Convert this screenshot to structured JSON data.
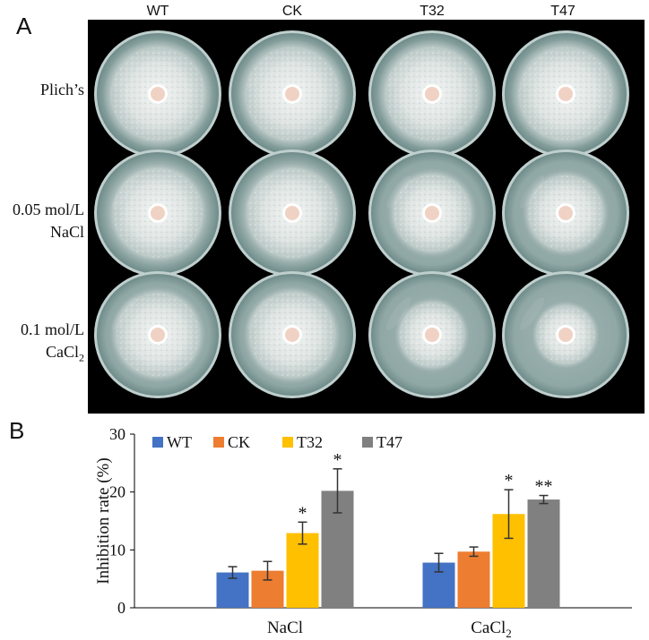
{
  "panel_a": {
    "letter": "A",
    "columns": [
      "WT",
      "CK",
      "T32",
      "T47"
    ],
    "rows": [
      {
        "line1": "Plich’s",
        "line2": ""
      },
      {
        "line1": "0.05 mol/L",
        "line2": "NaCl"
      },
      {
        "line1": "0.1 mol/L",
        "line2": "CaCl",
        "line2_sub": "2"
      }
    ],
    "colors": {
      "background": "#000000",
      "agar": "#8fa7a5",
      "mycelium": "#e8ecea",
      "inoculum": "#f0d2c4"
    },
    "colony_extent": [
      [
        0.9,
        0.9,
        0.9,
        0.9
      ],
      [
        0.86,
        0.86,
        0.74,
        0.72
      ],
      [
        0.8,
        0.82,
        0.62,
        0.56
      ]
    ]
  },
  "panel_b": {
    "letter": "B",
    "chart_data": {
      "type": "bar",
      "categories": [
        "NaCl",
        "CaCl2"
      ],
      "category_labels": [
        {
          "main": "NaCl",
          "sub": ""
        },
        {
          "main": "CaCl",
          "sub": "2"
        }
      ],
      "ylabel": "Inhibition rate (%)",
      "xlabel": "",
      "ylim": [
        0,
        30
      ],
      "yticks": [
        "0",
        "10",
        "20",
        "30"
      ],
      "legend_position": "top",
      "grid": false,
      "series": [
        {
          "name": "WT",
          "color": "#4472c4",
          "values": [
            6.1,
            7.8
          ],
          "errors": [
            1.0,
            1.6
          ],
          "marks": [
            "",
            ""
          ]
        },
        {
          "name": "CK",
          "color": "#ed7d31",
          "values": [
            6.4,
            9.7
          ],
          "errors": [
            1.6,
            0.8
          ],
          "marks": [
            "",
            ""
          ]
        },
        {
          "name": "T32",
          "color": "#ffc000",
          "values": [
            12.9,
            16.2
          ],
          "errors": [
            1.9,
            4.2
          ],
          "marks": [
            "*",
            "*"
          ]
        },
        {
          "name": "T47",
          "color": "#808080",
          "values": [
            20.2,
            18.7
          ],
          "errors": [
            3.8,
            0.7
          ],
          "marks": [
            "*",
            "**"
          ]
        }
      ]
    }
  }
}
